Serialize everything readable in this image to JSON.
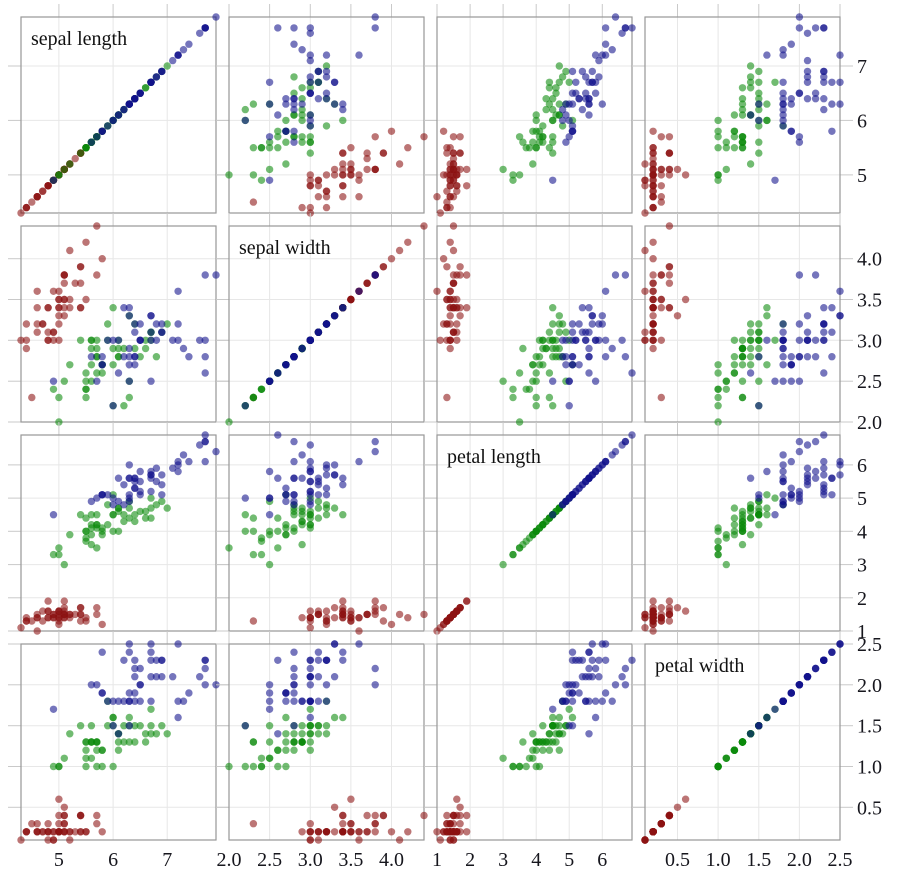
{
  "figure": {
    "background": "#ffffff",
    "panel_border_color": "#979797",
    "grid_color": "#e7e7e7",
    "tick_stub_color": "#c9c9c9",
    "text_color": "#16161d",
    "point_radius": 3.7,
    "point_opacity": 0.58
  },
  "chart_data": {
    "type": "scatter",
    "subtype": "scatterplot-matrix",
    "title": "",
    "grid": true,
    "legend": "none",
    "variables": [
      {
        "name": "sepal length",
        "min": 4.3,
        "max": 7.9,
        "ticks": [
          5,
          6,
          7
        ],
        "tick_labels": [
          "5",
          "6",
          "7"
        ]
      },
      {
        "name": "sepal width",
        "min": 2.0,
        "max": 4.4,
        "ticks": [
          2.0,
          2.5,
          3.0,
          3.5,
          4.0
        ],
        "tick_labels": [
          "2.0",
          "2.5",
          "3.0",
          "3.5",
          "4.0"
        ]
      },
      {
        "name": "petal length",
        "min": 1.0,
        "max": 6.9,
        "ticks": [
          1,
          2,
          3,
          4,
          5,
          6
        ],
        "tick_labels": [
          "1",
          "2",
          "3",
          "4",
          "5",
          "6"
        ]
      },
      {
        "name": "petal width",
        "min": 0.1,
        "max": 2.5,
        "ticks": [
          0.5,
          1.0,
          1.5,
          2.0,
          2.5
        ],
        "tick_labels": [
          "0.5",
          "1.0",
          "1.5",
          "2.0",
          "2.5"
        ]
      }
    ],
    "series": [
      {
        "name": "red",
        "color": "#8b1212",
        "points": [
          [
            5.1,
            3.5,
            1.4,
            0.2
          ],
          [
            4.9,
            3.0,
            1.4,
            0.2
          ],
          [
            4.7,
            3.2,
            1.3,
            0.2
          ],
          [
            4.6,
            3.1,
            1.5,
            0.2
          ],
          [
            5.0,
            3.6,
            1.4,
            0.2
          ],
          [
            5.4,
            3.9,
            1.7,
            0.4
          ],
          [
            4.6,
            3.4,
            1.4,
            0.3
          ],
          [
            5.0,
            3.4,
            1.5,
            0.2
          ],
          [
            4.4,
            2.9,
            1.4,
            0.2
          ],
          [
            4.9,
            3.1,
            1.5,
            0.1
          ],
          [
            5.4,
            3.7,
            1.5,
            0.2
          ],
          [
            4.8,
            3.4,
            1.6,
            0.2
          ],
          [
            4.8,
            3.0,
            1.4,
            0.1
          ],
          [
            4.3,
            3.0,
            1.1,
            0.1
          ],
          [
            5.8,
            4.0,
            1.2,
            0.2
          ],
          [
            5.7,
            4.4,
            1.5,
            0.4
          ],
          [
            5.4,
            3.9,
            1.3,
            0.4
          ],
          [
            5.1,
            3.5,
            1.4,
            0.3
          ],
          [
            5.7,
            3.8,
            1.7,
            0.3
          ],
          [
            5.1,
            3.8,
            1.5,
            0.3
          ],
          [
            5.4,
            3.4,
            1.7,
            0.2
          ],
          [
            5.1,
            3.7,
            1.5,
            0.4
          ],
          [
            4.6,
            3.6,
            1.0,
            0.2
          ],
          [
            5.1,
            3.3,
            1.7,
            0.5
          ],
          [
            4.8,
            3.4,
            1.9,
            0.2
          ],
          [
            5.0,
            3.0,
            1.6,
            0.2
          ],
          [
            5.0,
            3.4,
            1.6,
            0.4
          ],
          [
            5.2,
            3.5,
            1.5,
            0.2
          ],
          [
            5.2,
            3.4,
            1.4,
            0.2
          ],
          [
            4.7,
            3.2,
            1.6,
            0.2
          ],
          [
            4.8,
            3.1,
            1.6,
            0.2
          ],
          [
            5.4,
            3.4,
            1.5,
            0.4
          ],
          [
            5.2,
            4.1,
            1.5,
            0.1
          ],
          [
            5.5,
            4.2,
            1.4,
            0.2
          ],
          [
            4.9,
            3.1,
            1.5,
            0.2
          ],
          [
            5.0,
            3.2,
            1.2,
            0.2
          ],
          [
            5.5,
            3.5,
            1.3,
            0.2
          ],
          [
            4.9,
            3.6,
            1.4,
            0.1
          ],
          [
            4.4,
            3.0,
            1.3,
            0.2
          ],
          [
            5.1,
            3.4,
            1.5,
            0.2
          ],
          [
            5.0,
            3.5,
            1.3,
            0.3
          ],
          [
            4.5,
            2.3,
            1.3,
            0.3
          ],
          [
            4.4,
            3.2,
            1.3,
            0.2
          ],
          [
            5.0,
            3.5,
            1.6,
            0.6
          ],
          [
            5.1,
            3.8,
            1.9,
            0.4
          ],
          [
            4.8,
            3.0,
            1.4,
            0.3
          ],
          [
            5.1,
            3.8,
            1.6,
            0.2
          ],
          [
            4.6,
            3.2,
            1.4,
            0.2
          ],
          [
            5.3,
            3.7,
            1.5,
            0.2
          ],
          [
            5.0,
            3.3,
            1.4,
            0.2
          ]
        ]
      },
      {
        "name": "green",
        "color": "#0b8a0b",
        "points": [
          [
            7.0,
            3.2,
            4.7,
            1.4
          ],
          [
            6.4,
            3.2,
            4.5,
            1.5
          ],
          [
            6.9,
            3.1,
            4.9,
            1.5
          ],
          [
            5.5,
            2.3,
            4.0,
            1.3
          ],
          [
            6.5,
            2.8,
            4.6,
            1.5
          ],
          [
            5.7,
            2.8,
            4.5,
            1.3
          ],
          [
            6.3,
            3.3,
            4.7,
            1.6
          ],
          [
            4.9,
            2.4,
            3.3,
            1.0
          ],
          [
            6.6,
            2.9,
            4.6,
            1.3
          ],
          [
            5.2,
            2.7,
            3.9,
            1.4
          ],
          [
            5.0,
            2.0,
            3.5,
            1.0
          ],
          [
            5.9,
            3.0,
            4.2,
            1.5
          ],
          [
            6.0,
            2.2,
            4.0,
            1.0
          ],
          [
            6.1,
            2.9,
            4.7,
            1.4
          ],
          [
            5.6,
            2.9,
            3.6,
            1.3
          ],
          [
            6.7,
            3.1,
            4.4,
            1.4
          ],
          [
            5.6,
            3.0,
            4.5,
            1.5
          ],
          [
            5.8,
            2.7,
            4.1,
            1.0
          ],
          [
            6.2,
            2.2,
            4.5,
            1.5
          ],
          [
            5.6,
            2.5,
            3.9,
            1.1
          ],
          [
            5.9,
            3.2,
            4.8,
            1.8
          ],
          [
            6.1,
            2.8,
            4.0,
            1.3
          ],
          [
            6.3,
            2.5,
            4.9,
            1.5
          ],
          [
            6.1,
            2.8,
            4.7,
            1.2
          ],
          [
            6.4,
            2.9,
            4.3,
            1.3
          ],
          [
            6.6,
            3.0,
            4.4,
            1.4
          ],
          [
            6.8,
            2.8,
            4.8,
            1.4
          ],
          [
            6.7,
            3.0,
            5.0,
            1.7
          ],
          [
            6.0,
            2.9,
            4.5,
            1.5
          ],
          [
            5.7,
            2.6,
            3.5,
            1.0
          ],
          [
            5.5,
            2.4,
            3.8,
            1.1
          ],
          [
            5.5,
            2.4,
            3.7,
            1.0
          ],
          [
            5.8,
            2.7,
            3.9,
            1.2
          ],
          [
            6.0,
            2.7,
            5.1,
            1.6
          ],
          [
            5.4,
            3.0,
            4.5,
            1.5
          ],
          [
            6.0,
            3.4,
            4.5,
            1.6
          ],
          [
            6.7,
            3.1,
            4.7,
            1.5
          ],
          [
            6.3,
            2.3,
            4.4,
            1.3
          ],
          [
            5.6,
            3.0,
            4.1,
            1.3
          ],
          [
            5.5,
            2.5,
            4.0,
            1.3
          ],
          [
            5.5,
            2.6,
            4.4,
            1.2
          ],
          [
            6.1,
            3.0,
            4.6,
            1.4
          ],
          [
            5.8,
            2.6,
            4.0,
            1.2
          ],
          [
            5.0,
            2.3,
            3.3,
            1.0
          ],
          [
            5.6,
            2.7,
            4.2,
            1.3
          ],
          [
            5.7,
            3.0,
            4.2,
            1.2
          ],
          [
            5.7,
            2.9,
            4.2,
            1.3
          ],
          [
            6.2,
            2.9,
            4.3,
            1.3
          ],
          [
            5.1,
            2.5,
            3.0,
            1.1
          ],
          [
            5.7,
            2.8,
            4.1,
            1.3
          ]
        ]
      },
      {
        "name": "blue",
        "color": "#12128b",
        "points": [
          [
            6.3,
            3.3,
            6.0,
            2.5
          ],
          [
            5.8,
            2.7,
            5.1,
            1.9
          ],
          [
            7.1,
            3.0,
            5.9,
            2.1
          ],
          [
            6.3,
            2.9,
            5.6,
            1.8
          ],
          [
            6.5,
            3.0,
            5.8,
            2.2
          ],
          [
            7.6,
            3.0,
            6.6,
            2.1
          ],
          [
            4.9,
            2.5,
            4.5,
            1.7
          ],
          [
            7.3,
            2.9,
            6.3,
            1.8
          ],
          [
            6.7,
            2.5,
            5.8,
            1.8
          ],
          [
            7.2,
            3.6,
            6.1,
            2.5
          ],
          [
            6.5,
            3.2,
            5.1,
            2.0
          ],
          [
            6.4,
            2.7,
            5.3,
            1.9
          ],
          [
            6.8,
            3.0,
            5.5,
            2.1
          ],
          [
            5.7,
            2.5,
            5.0,
            2.0
          ],
          [
            5.8,
            2.8,
            5.1,
            2.4
          ],
          [
            6.4,
            3.2,
            5.3,
            2.3
          ],
          [
            6.5,
            3.0,
            5.5,
            1.8
          ],
          [
            7.7,
            3.8,
            6.7,
            2.2
          ],
          [
            7.7,
            2.6,
            6.9,
            2.3
          ],
          [
            6.0,
            2.2,
            5.0,
            1.5
          ],
          [
            6.9,
            3.2,
            5.7,
            2.3
          ],
          [
            5.6,
            2.8,
            4.9,
            2.0
          ],
          [
            7.7,
            2.8,
            6.7,
            2.0
          ],
          [
            6.3,
            2.7,
            4.9,
            1.8
          ],
          [
            6.7,
            3.3,
            5.7,
            2.1
          ],
          [
            7.2,
            3.2,
            6.0,
            1.8
          ],
          [
            6.2,
            2.8,
            4.8,
            1.8
          ],
          [
            6.1,
            3.0,
            4.9,
            1.8
          ],
          [
            6.4,
            2.8,
            5.6,
            2.1
          ],
          [
            7.2,
            3.0,
            5.8,
            1.6
          ],
          [
            7.4,
            2.8,
            6.1,
            1.9
          ],
          [
            7.9,
            3.8,
            6.4,
            2.0
          ],
          [
            6.4,
            2.8,
            5.6,
            2.2
          ],
          [
            6.3,
            2.8,
            5.1,
            1.5
          ],
          [
            6.1,
            2.6,
            5.6,
            1.4
          ],
          [
            7.7,
            3.0,
            6.1,
            2.3
          ],
          [
            6.3,
            3.4,
            5.6,
            2.4
          ],
          [
            6.4,
            3.1,
            5.5,
            1.8
          ],
          [
            6.0,
            3.0,
            4.8,
            1.8
          ],
          [
            6.9,
            3.1,
            5.4,
            2.1
          ],
          [
            6.7,
            3.1,
            5.6,
            2.4
          ],
          [
            6.9,
            3.1,
            5.1,
            2.3
          ],
          [
            5.8,
            2.7,
            5.1,
            1.9
          ],
          [
            6.8,
            3.2,
            5.9,
            2.3
          ],
          [
            6.7,
            3.3,
            5.7,
            2.5
          ],
          [
            6.7,
            3.0,
            5.2,
            2.3
          ],
          [
            6.3,
            2.5,
            5.0,
            1.9
          ],
          [
            6.5,
            3.0,
            5.2,
            2.0
          ],
          [
            6.2,
            3.4,
            5.4,
            2.3
          ],
          [
            5.9,
            3.0,
            5.1,
            1.8
          ]
        ]
      }
    ]
  }
}
